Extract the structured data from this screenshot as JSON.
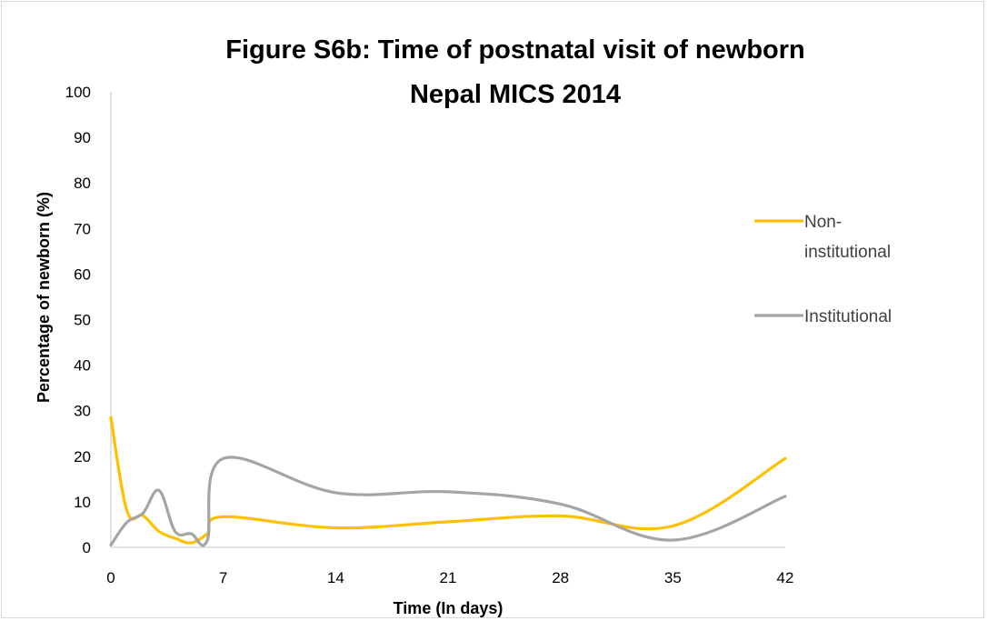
{
  "chart_data": {
    "type": "line",
    "title": "Figure S6b: Time of postnatal visit of newborn",
    "subtitle": "Nepal MICS 2014",
    "xlabel": "Time (In days)",
    "ylabel": "Percentage of newborn (%)",
    "xlim": [
      0,
      42
    ],
    "ylim": [
      0,
      100
    ],
    "x_ticks": [
      "0",
      "7",
      "14",
      "21",
      "28",
      "35",
      "42"
    ],
    "y_ticks": [
      "0",
      "10",
      "20",
      "30",
      "40",
      "50",
      "60",
      "70",
      "80",
      "90",
      "100"
    ],
    "grid": false,
    "legend_position": "right",
    "x": [
      0,
      1,
      2,
      3,
      4,
      5,
      6,
      7,
      14,
      21,
      28,
      35,
      42
    ],
    "series": [
      {
        "name": "Non-institutional",
        "legend_lines": [
          "Non-",
          "institutional"
        ],
        "color": "#FFC000",
        "values": [
          28.5,
          8.0,
          7.0,
          3.5,
          2.0,
          1.0,
          3.0,
          6.7,
          4.3,
          5.6,
          6.9,
          4.7,
          19.5
        ]
      },
      {
        "name": "Institutional",
        "legend_lines": [
          "Institutional"
        ],
        "color": "#A5A5A5",
        "values": [
          0.5,
          5.5,
          7.5,
          12.5,
          3.5,
          3.0,
          1.5,
          19.5,
          12.0,
          12.2,
          9.5,
          1.6,
          11.2
        ]
      }
    ]
  }
}
